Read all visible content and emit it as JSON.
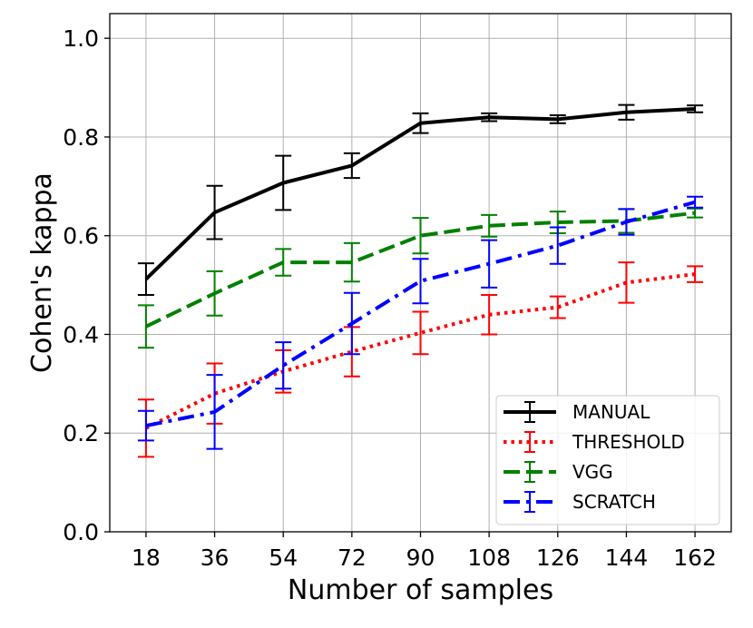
{
  "chart_data": {
    "type": "line",
    "title": "",
    "xlabel": "Number of samples",
    "ylabel": "Cohen's kappa",
    "x": [
      18,
      36,
      54,
      72,
      90,
      108,
      126,
      144,
      162
    ],
    "x_ticks": [
      "18",
      "36",
      "54",
      "72",
      "90",
      "108",
      "126",
      "144",
      "162"
    ],
    "ylim": [
      0.0,
      1.05
    ],
    "y_ticks": [
      0.0,
      0.2,
      0.4,
      0.6,
      0.8,
      1.0
    ],
    "y_tick_labels": [
      "0.0",
      "0.2",
      "0.4",
      "0.6",
      "0.8",
      "1.0"
    ],
    "grid": true,
    "legend_position": "lower-right",
    "series": [
      {
        "name": "MANUAL",
        "color": "#000000",
        "style": "solid",
        "values": [
          0.512,
          0.647,
          0.707,
          0.742,
          0.828,
          0.84,
          0.836,
          0.85,
          0.857
        ],
        "errors": [
          0.032,
          0.054,
          0.055,
          0.025,
          0.02,
          0.008,
          0.008,
          0.015,
          0.007
        ]
      },
      {
        "name": "THRESHOLD",
        "color": "#ff0000",
        "style": "dotted",
        "values": [
          0.21,
          0.28,
          0.325,
          0.365,
          0.403,
          0.44,
          0.455,
          0.505,
          0.522
        ],
        "errors": [
          0.058,
          0.061,
          0.043,
          0.05,
          0.043,
          0.04,
          0.022,
          0.041,
          0.016
        ]
      },
      {
        "name": "VGG",
        "color": "#008000",
        "style": "dashed",
        "values": [
          0.416,
          0.483,
          0.546,
          0.546,
          0.6,
          0.62,
          0.627,
          0.63,
          0.646
        ],
        "errors": [
          0.043,
          0.045,
          0.027,
          0.039,
          0.036,
          0.022,
          0.022,
          0.024,
          0.009
        ]
      },
      {
        "name": "SCRATCH",
        "color": "#0000ff",
        "style": "dashdot",
        "values": [
          0.215,
          0.243,
          0.337,
          0.422,
          0.508,
          0.543,
          0.58,
          0.628,
          0.668
        ],
        "errors": [
          0.03,
          0.075,
          0.047,
          0.062,
          0.045,
          0.048,
          0.037,
          0.026,
          0.011
        ]
      }
    ]
  }
}
